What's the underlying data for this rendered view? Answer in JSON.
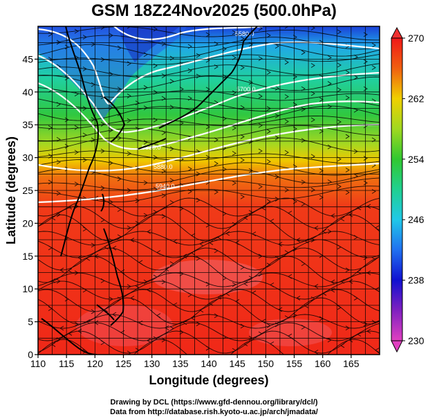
{
  "title": "GSM 18Z24Nov2025 (500.0hPa)",
  "xlabel": "Longitude (degrees)",
  "ylabel": "Latitude (degrees)",
  "x_ticks": [
    110,
    115,
    120,
    125,
    130,
    135,
    140,
    145,
    150,
    155,
    160,
    165
  ],
  "y_ticks": [
    0,
    5,
    10,
    15,
    20,
    25,
    30,
    35,
    40,
    45
  ],
  "x_range": [
    110,
    170
  ],
  "y_range": [
    0,
    50
  ],
  "colorbar": {
    "min": 230,
    "max": 270,
    "tick_labels": [
      "230",
      "238",
      "246",
      "254",
      "262",
      "270"
    ],
    "tick_values": [
      230,
      238,
      246,
      254,
      262,
      270
    ],
    "stops": [
      {
        "v": 230,
        "c": "#e040c0"
      },
      {
        "v": 234,
        "c": "#8020c0"
      },
      {
        "v": 238,
        "c": "#1010d0"
      },
      {
        "v": 242,
        "c": "#2070f0"
      },
      {
        "v": 246,
        "c": "#20c8e8"
      },
      {
        "v": 250,
        "c": "#20d090"
      },
      {
        "v": 254,
        "c": "#30c830"
      },
      {
        "v": 258,
        "c": "#a0d820"
      },
      {
        "v": 262,
        "c": "#f0d000"
      },
      {
        "v": 266,
        "c": "#f06010"
      },
      {
        "v": 270,
        "c": "#f01818"
      }
    ]
  },
  "contour_labels": [
    "5580.0",
    "5700.0",
    "5820.0",
    "5880.0",
    "5940.0"
  ],
  "credits": [
    "Drawing by DCL (https://www.gfd-dennou.org/library/dcl/)",
    "Data from http://database.rish.kyoto-u.ac.jp/arch/jmadata/"
  ]
}
